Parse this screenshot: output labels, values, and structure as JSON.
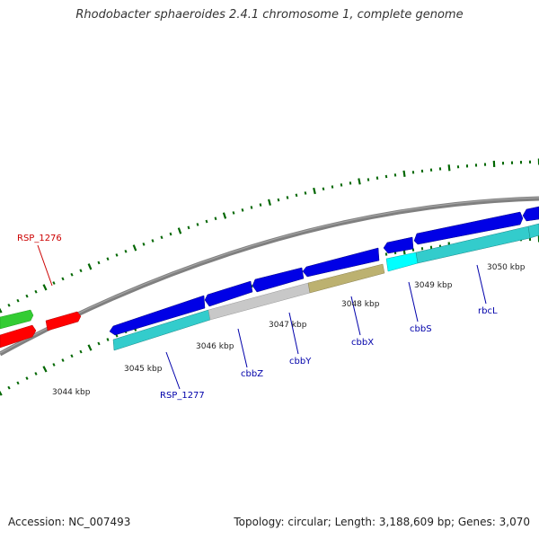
{
  "title": "Rhodobacter sphaeroides 2.4.1 chromosome 1, complete genome",
  "footer": {
    "accession": "Accession: NC_007493",
    "summary": "Topology: circular; Length: 3,188,609 bp; Genes: 3,070"
  },
  "colors": {
    "blue_gene": "#0000e6",
    "cyan_gene": "#33cccc",
    "grey_gene": "#c8c8c8",
    "olive_gene": "#bcb170",
    "bright_cyan_gene": "#00ffff",
    "green_gene": "#33cc33",
    "red_gene": "#ff0000",
    "backbone": "#808080",
    "tick": "#006600",
    "label_blue": "#0000aa",
    "label_red": "#cc0000"
  },
  "scale_labels": [
    "3044 kbp",
    "3045 kbp",
    "3046 kbp",
    "3047 kbp",
    "3048 kbp",
    "3049 kbp",
    "3050 kbp"
  ],
  "gene_labels": [
    {
      "text": "RSP_1276",
      "color": "red"
    },
    {
      "text": "RSP_1277",
      "color": "blue"
    },
    {
      "text": "cbbZ",
      "color": "blue"
    },
    {
      "text": "cbbY",
      "color": "blue"
    },
    {
      "text": "cbbX",
      "color": "blue"
    },
    {
      "text": "cbbS",
      "color": "blue"
    },
    {
      "text": "rbcL",
      "color": "blue"
    }
  ]
}
